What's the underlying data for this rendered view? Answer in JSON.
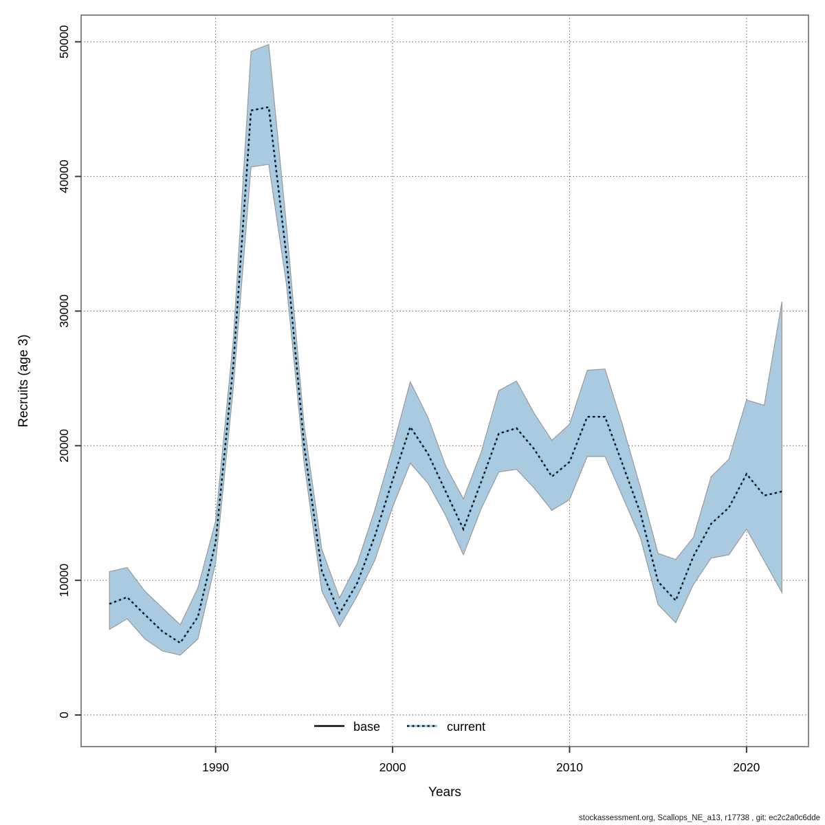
{
  "chart_data": {
    "type": "line",
    "title": "",
    "xlabel": "Years",
    "ylabel": "Recruits (age 3)",
    "x_ticks": [
      1990,
      2000,
      2010,
      2020
    ],
    "y_ticks": [
      0,
      10000,
      20000,
      30000,
      40000,
      50000
    ],
    "xlim": [
      1982.4,
      2023.5
    ],
    "ylim": [
      -2350,
      51980
    ],
    "grid": "dotted",
    "legend_position": "bottom-center-inside",
    "colors": {
      "band_fill": "#a9cadf",
      "band_edge": "#9a9a9a",
      "current_line_under": "#8fc6e4",
      "current_line_dash": "#0a0a0a",
      "base_line": "#000000",
      "grid_line": "#565656",
      "box": "#858585"
    },
    "x": [
      1984,
      1985,
      1986,
      1987,
      1988,
      1989,
      1990,
      1991,
      1992,
      1993,
      1994,
      1995,
      1996,
      1997,
      1998,
      1999,
      2000,
      2001,
      2002,
      2003,
      2004,
      2005,
      2006,
      2007,
      2008,
      2009,
      2010,
      2011,
      2012,
      2013,
      2014,
      2015,
      2016,
      2017,
      2018,
      2019,
      2020,
      2021,
      2022
    ],
    "series": [
      {
        "name": "current",
        "style": "dotted",
        "values": [
          8250,
          8750,
          7450,
          6200,
          5350,
          7300,
          12800,
          26000,
          44900,
          45150,
          34100,
          20000,
          10700,
          7550,
          9800,
          13300,
          17450,
          21400,
          19400,
          16600,
          13800,
          17300,
          20900,
          21300,
          19750,
          17700,
          18800,
          22150,
          22150,
          18600,
          15000,
          9900,
          8500,
          11800,
          14200,
          15400,
          17900,
          16300,
          16600
        ]
      }
    ],
    "ci_lower": [
      6350,
      7150,
      5650,
      4750,
      4450,
      5650,
      11300,
      24300,
      40700,
      40900,
      32000,
      18700,
      9200,
      6550,
      8850,
      11500,
      15450,
      18700,
      17200,
      14800,
      11900,
      15300,
      18050,
      18250,
      16850,
      15200,
      16000,
      19200,
      19200,
      16200,
      13150,
      8200,
      6850,
      9700,
      11650,
      11900,
      13800,
      11450,
      9100
    ],
    "ci_upper": [
      10650,
      10950,
      9200,
      7950,
      6700,
      9450,
      14400,
      27900,
      49300,
      49800,
      36400,
      21500,
      12300,
      8700,
      11250,
      15250,
      19850,
      24750,
      22100,
      18500,
      16050,
      19500,
      24100,
      24800,
      22400,
      20400,
      21600,
      25600,
      25700,
      21500,
      16900,
      12000,
      11550,
      13200,
      17700,
      19000,
      23400,
      23000,
      30700
    ]
  },
  "legend": {
    "items": [
      {
        "label": "base",
        "line": "solid",
        "color": "#000000"
      },
      {
        "label": "current",
        "line": "dotted",
        "color": "#8fc6e4"
      }
    ]
  },
  "footer": {
    "text": "stockassessment.org, Scallops_NE_a13, r17738 , git: ec2c2a0c6dde"
  }
}
